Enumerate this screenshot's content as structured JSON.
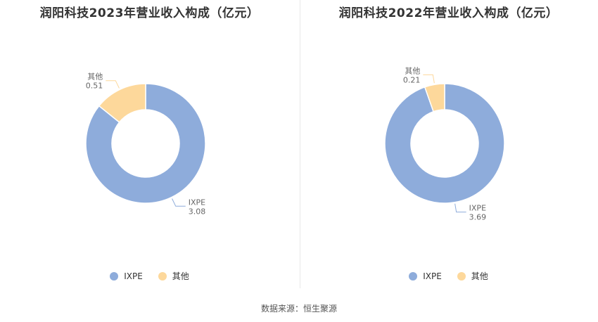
{
  "colors": {
    "IXPE": "#8eacdb",
    "other": "#fdd89b",
    "leader": "#b5b5b5",
    "label": "#666666"
  },
  "source": "数据来源：恒生聚源",
  "chart_data": [
    {
      "type": "pie",
      "title": "润阳科技2023年营业收入构成（亿元）",
      "legend_position": "bottom",
      "slices": [
        {
          "name": "IXPE",
          "value": 3.08,
          "value_label": "3.08"
        },
        {
          "name": "其他",
          "value": 0.51,
          "value_label": "0.51"
        }
      ]
    },
    {
      "type": "pie",
      "title": "润阳科技2022年营业收入构成（亿元）",
      "legend_position": "bottom",
      "slices": [
        {
          "name": "IXPE",
          "value": 3.69,
          "value_label": "3.69"
        },
        {
          "name": "其他",
          "value": 0.21,
          "value_label": "0.21"
        }
      ]
    }
  ]
}
